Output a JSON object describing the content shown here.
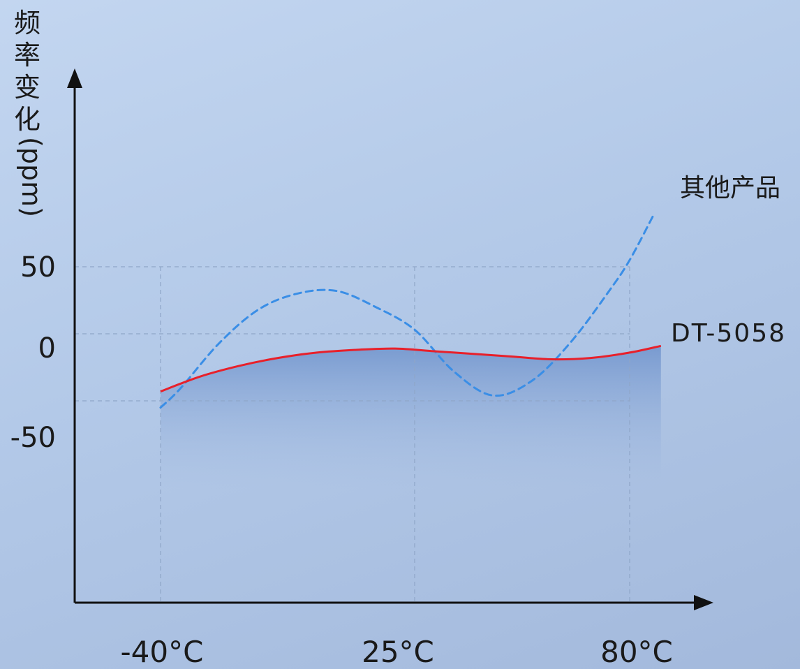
{
  "chart_data": {
    "type": "line",
    "title": "",
    "ylabel_cjk": "频率变化",
    "ylabel_unit": "(ppm)",
    "xlabel": "",
    "x_ticks": [
      "-40°C",
      "25°C",
      "80°C"
    ],
    "x_tick_values": [
      -40,
      25,
      80
    ],
    "y_ticks": [
      "50",
      "0",
      "-50"
    ],
    "y_tick_values": [
      50,
      0,
      -50
    ],
    "xlim": [
      -62,
      122
    ],
    "ylim": [
      -97,
      152
    ],
    "grid": "dashed at ticks",
    "series": [
      {
        "name": "其他产品",
        "style": "dashed",
        "color": "#3a8ee6",
        "x": [
          -40,
          -35,
          -25,
          -15,
          -5,
          5,
          15,
          25,
          35,
          45,
          55,
          65,
          75,
          80,
          86
        ],
        "y": [
          -55,
          -41,
          -7,
          18,
          30,
          32,
          20,
          3,
          -28,
          -46,
          -35,
          -6,
          33,
          55,
          88
        ]
      },
      {
        "name": "DT-5058",
        "style": "solid",
        "color": "#e8202a",
        "x": [
          -40,
          -30,
          -20,
          -10,
          0,
          10,
          20,
          30,
          40,
          50,
          60,
          70,
          80,
          88
        ],
        "y": [
          -43,
          -32,
          -24,
          -18,
          -14,
          -12,
          -11,
          -13,
          -15,
          -17,
          -19,
          -18,
          -14,
          -9
        ]
      }
    ]
  }
}
